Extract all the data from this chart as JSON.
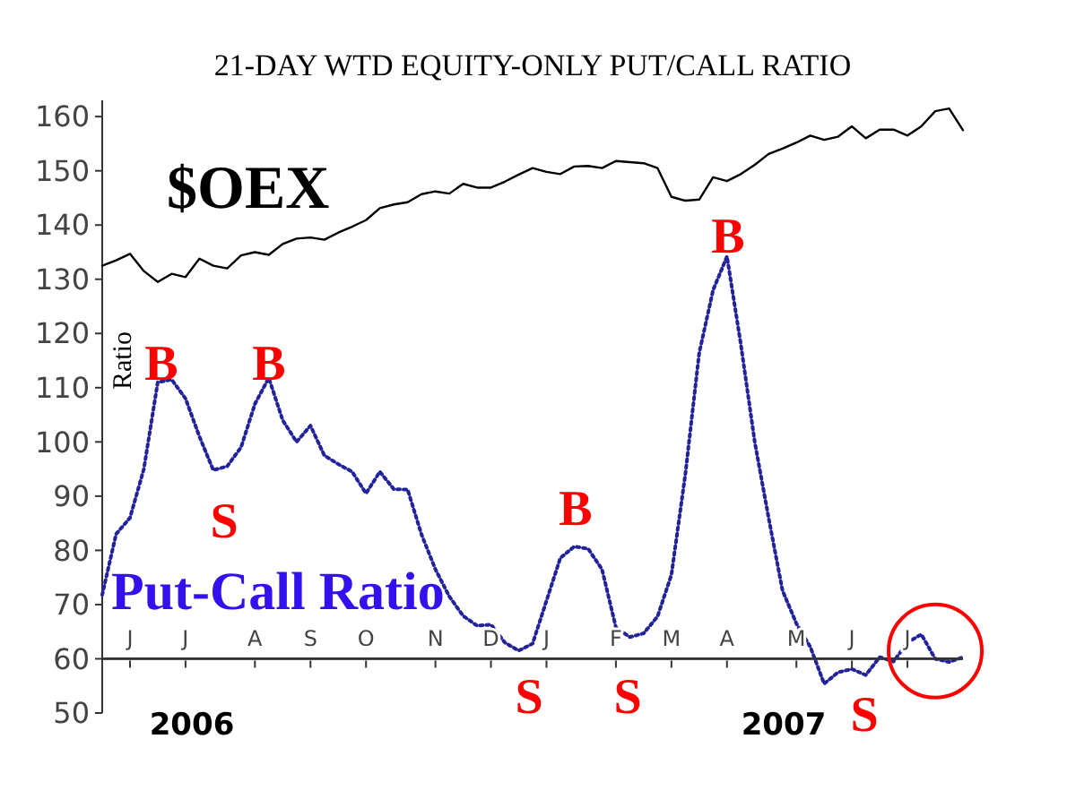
{
  "chart_data": {
    "type": "line",
    "title": "21-DAY WTD EQUITY-ONLY PUT/CALL RATIO",
    "ylabel": "Ratio",
    "categories": [
      null,
      null,
      "J",
      null,
      null,
      null,
      "J",
      null,
      null,
      null,
      null,
      "A",
      null,
      null,
      null,
      "S",
      null,
      null,
      null,
      "O",
      null,
      null,
      null,
      null,
      "N",
      null,
      null,
      null,
      "D",
      null,
      null,
      null,
      "J",
      null,
      null,
      null,
      null,
      "F",
      null,
      null,
      null,
      "M",
      null,
      null,
      null,
      "A",
      null,
      null,
      null,
      null,
      "M",
      null,
      null,
      null,
      "J",
      null,
      null,
      null,
      "J",
      null,
      null,
      null,
      null
    ],
    "ylim": [
      50,
      163
    ],
    "yticks": [
      50,
      60,
      70,
      80,
      90,
      100,
      110,
      120,
      130,
      140,
      150,
      160
    ],
    "ref_lines": [
      {
        "axis": "y",
        "value": 60,
        "color": "#333333"
      }
    ],
    "series": [
      {
        "name": "$OEX",
        "color": "#000000",
        "line_style": "solid",
        "values": [
          132.5,
          133.5,
          134.7,
          131.5,
          129.5,
          131,
          130.4,
          133.8,
          132.5,
          132,
          134.4,
          135,
          134.5,
          136.5,
          137.5,
          137.7,
          137.3,
          138.6,
          139.7,
          140.9,
          143.1,
          143.8,
          144.2,
          145.7,
          146.2,
          145.8,
          147.6,
          146.9,
          146.9,
          148,
          149.3,
          150.5,
          149.8,
          149.4,
          150.8,
          150.9,
          150.5,
          151.8,
          151.6,
          151.4,
          150.5,
          145.2,
          144.5,
          144.7,
          148.8,
          148.1,
          149.4,
          151.1,
          153.1,
          154.1,
          155.2,
          156.5,
          155.7,
          156.3,
          158.2,
          156,
          157.6,
          157.6,
          156.5,
          158.2,
          161,
          161.5,
          157.5
        ]
      },
      {
        "name": "Put-Call Ratio",
        "color": "#22229a",
        "line_style": "dotted",
        "values": [
          71.8,
          83,
          86,
          95,
          111,
          111.5,
          108,
          101,
          94.8,
          95.5,
          99,
          107,
          111.8,
          104,
          100,
          103,
          97.5,
          95.9,
          94.5,
          90.5,
          94.5,
          91.3,
          91.2,
          82.9,
          76.5,
          71.5,
          67.9,
          66.1,
          66.3,
          63,
          61.5,
          62.8,
          70.7,
          78.6,
          80.7,
          80.3,
          76.5,
          65.8,
          64,
          64.7,
          67.8,
          75.5,
          94,
          116.4,
          128,
          134.2,
          118,
          100,
          86,
          72.6,
          66.5,
          62.2,
          55.4,
          57.5,
          58.1,
          57,
          60.3,
          59.5,
          63,
          64.5,
          60,
          59.4,
          60.3
        ]
      }
    ],
    "annotations": [
      "B",
      "S",
      "B",
      "S",
      "B",
      "S",
      "B",
      "S",
      "2006",
      "2007"
    ]
  }
}
